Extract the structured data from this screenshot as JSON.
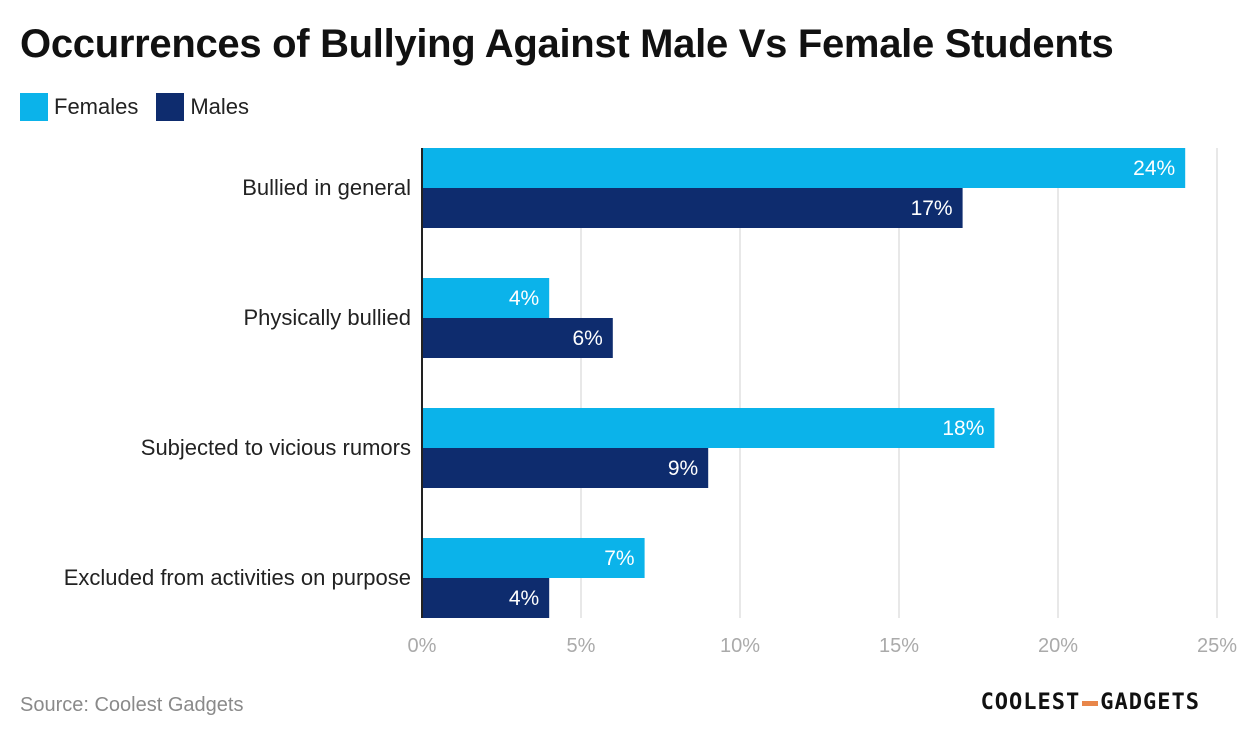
{
  "colors": {
    "females": "#0bb3ea",
    "males": "#0e2c6e",
    "grid": "#e0e0e0",
    "axis": "#222222",
    "tick": "#aaaaaa",
    "accent": "#e8864a"
  },
  "chart_data": {
    "type": "bar",
    "orientation": "horizontal",
    "title": "Occurrences of Bullying Against Male Vs Female Students",
    "categories": [
      "Bullied in general",
      "Physically bullied",
      "Subjected to vicious rumors",
      "Excluded from activities on purpose"
    ],
    "series": [
      {
        "name": "Females",
        "values": [
          24,
          4,
          18,
          7
        ],
        "labels": [
          "24%",
          "4%",
          "18%",
          "7%"
        ]
      },
      {
        "name": "Males",
        "values": [
          17,
          6,
          9,
          4
        ],
        "labels": [
          "17%",
          "6%",
          "9%",
          "4%"
        ]
      }
    ],
    "xlim": [
      0,
      25
    ],
    "xticks": [
      0,
      5,
      10,
      15,
      20,
      25
    ],
    "xtick_labels": [
      "0%",
      "5%",
      "10%",
      "15%",
      "20%",
      "25%"
    ],
    "legend_position": "top-left",
    "grid": true
  },
  "source_text": "Source: Coolest Gadgets",
  "logo": {
    "left": "COOLEST",
    "right": "GADGETS"
  }
}
